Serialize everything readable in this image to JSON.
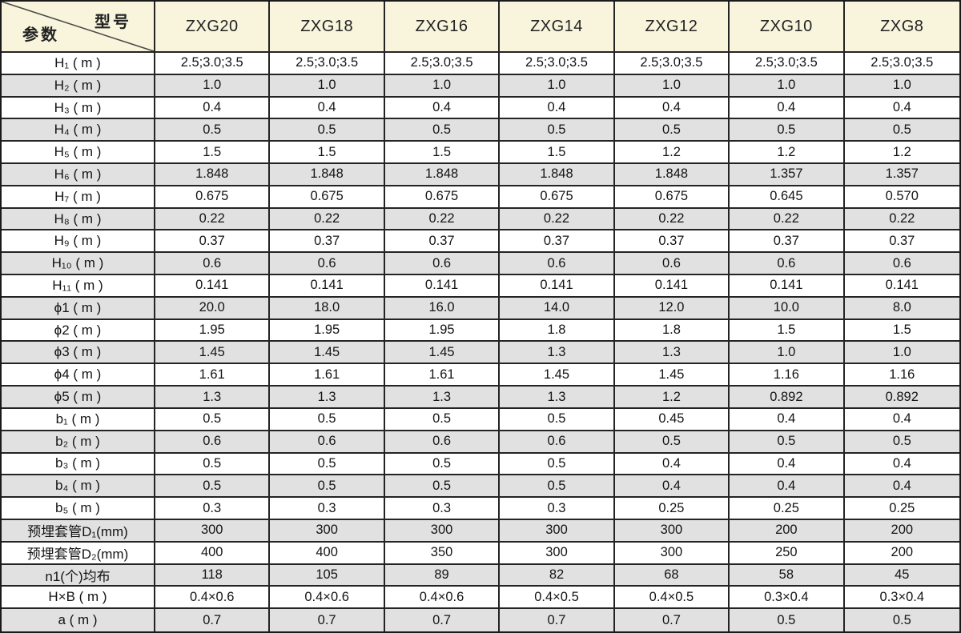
{
  "colors": {
    "header_bg": "#f9f5dc",
    "stripe_gray": "#e1e1e1",
    "row_white": "#ffffff",
    "border": "#242424",
    "text": "#141414"
  },
  "chart_data": {
    "type": "table",
    "corner": {
      "model_label": "型号",
      "param_label": "参数"
    },
    "columns": [
      "ZXG20",
      "ZXG18",
      "ZXG16",
      "ZXG14",
      "ZXG12",
      "ZXG10",
      "ZXG8"
    ],
    "rows": [
      {
        "label": "H₁ ( m )",
        "values": [
          "2.5;3.0;3.5",
          "2.5;3.0;3.5",
          "2.5;3.0;3.5",
          "2.5;3.0;3.5",
          "2.5;3.0;3.5",
          "2.5;3.0;3.5",
          "2.5;3.0;3.5"
        ]
      },
      {
        "label": "H₂ ( m )",
        "values": [
          "1.0",
          "1.0",
          "1.0",
          "1.0",
          "1.0",
          "1.0",
          "1.0"
        ]
      },
      {
        "label": "H₃ ( m )",
        "values": [
          "0.4",
          "0.4",
          "0.4",
          "0.4",
          "0.4",
          "0.4",
          "0.4"
        ]
      },
      {
        "label": "H₄ ( m )",
        "values": [
          "0.5",
          "0.5",
          "0.5",
          "0.5",
          "0.5",
          "0.5",
          "0.5"
        ]
      },
      {
        "label": "H₅ ( m )",
        "values": [
          "1.5",
          "1.5",
          "1.5",
          "1.5",
          "1.2",
          "1.2",
          "1.2"
        ]
      },
      {
        "label": "H₆ ( m )",
        "values": [
          "1.848",
          "1.848",
          "1.848",
          "1.848",
          "1.848",
          "1.357",
          "1.357"
        ]
      },
      {
        "label": "H₇ ( m )",
        "values": [
          "0.675",
          "0.675",
          "0.675",
          "0.675",
          "0.675",
          "0.645",
          "0.570"
        ]
      },
      {
        "label": "H₈ ( m )",
        "values": [
          "0.22",
          "0.22",
          "0.22",
          "0.22",
          "0.22",
          "0.22",
          "0.22"
        ]
      },
      {
        "label": "H₉ ( m )",
        "values": [
          "0.37",
          "0.37",
          "0.37",
          "0.37",
          "0.37",
          "0.37",
          "0.37"
        ]
      },
      {
        "label": "H₁₀ ( m )",
        "values": [
          "0.6",
          "0.6",
          "0.6",
          "0.6",
          "0.6",
          "0.6",
          "0.6"
        ]
      },
      {
        "label": "H₁₁ ( m )",
        "values": [
          "0.141",
          "0.141",
          "0.141",
          "0.141",
          "0.141",
          "0.141",
          "0.141"
        ]
      },
      {
        "label": "ϕ1 ( m )",
        "values": [
          "20.0",
          "18.0",
          "16.0",
          "14.0",
          "12.0",
          "10.0",
          "8.0"
        ]
      },
      {
        "label": "ϕ2 ( m )",
        "values": [
          "1.95",
          "1.95",
          "1.95",
          "1.8",
          "1.8",
          "1.5",
          "1.5"
        ]
      },
      {
        "label": "ϕ3 ( m )",
        "values": [
          "1.45",
          "1.45",
          "1.45",
          "1.3",
          "1.3",
          "1.0",
          "1.0"
        ]
      },
      {
        "label": "ϕ4 ( m )",
        "values": [
          "1.61",
          "1.61",
          "1.61",
          "1.45",
          "1.45",
          "1.16",
          "1.16"
        ]
      },
      {
        "label": "ϕ5 ( m )",
        "values": [
          "1.3",
          "1.3",
          "1.3",
          "1.3",
          "1.2",
          "0.892",
          "0.892"
        ]
      },
      {
        "label": "b₁ ( m )",
        "values": [
          "0.5",
          "0.5",
          "0.5",
          "0.5",
          "0.45",
          "0.4",
          "0.4"
        ]
      },
      {
        "label": "b₂ ( m )",
        "values": [
          "0.6",
          "0.6",
          "0.6",
          "0.6",
          "0.5",
          "0.5",
          "0.5"
        ]
      },
      {
        "label": "b₃ ( m )",
        "values": [
          "0.5",
          "0.5",
          "0.5",
          "0.5",
          "0.4",
          "0.4",
          "0.4"
        ]
      },
      {
        "label": "b₄ ( m )",
        "values": [
          "0.5",
          "0.5",
          "0.5",
          "0.5",
          "0.4",
          "0.4",
          "0.4"
        ]
      },
      {
        "label": "b₅ ( m )",
        "values": [
          "0.3",
          "0.3",
          "0.3",
          "0.3",
          "0.25",
          "0.25",
          "0.25"
        ]
      },
      {
        "label": "预埋套管D₁(mm)",
        "values": [
          "300",
          "300",
          "300",
          "300",
          "300",
          "200",
          "200"
        ]
      },
      {
        "label": "预埋套管D₂(mm)",
        "values": [
          "400",
          "400",
          "350",
          "300",
          "300",
          "250",
          "200"
        ]
      },
      {
        "label": "n1(个)均布",
        "values": [
          "118",
          "105",
          "89",
          "82",
          "68",
          "58",
          "45"
        ]
      },
      {
        "label": "H×B ( m )",
        "values": [
          "0.4×0.6",
          "0.4×0.6",
          "0.4×0.6",
          "0.4×0.5",
          "0.4×0.5",
          "0.3×0.4",
          "0.3×0.4"
        ]
      },
      {
        "label": "a ( m )",
        "values": [
          "0.7",
          "0.7",
          "0.7",
          "0.7",
          "0.7",
          "0.5",
          "0.5"
        ]
      }
    ]
  }
}
